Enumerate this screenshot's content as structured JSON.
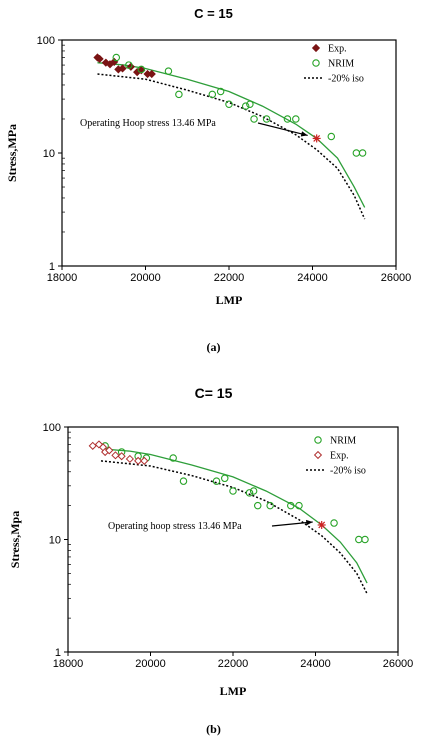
{
  "panels": [
    {
      "title": "C = 15",
      "label": "(a)",
      "chart_data": {
        "type": "scatter",
        "xlabel": "LMP",
        "ylabel": "Stress,MPa",
        "xlim": [
          18000,
          26000
        ],
        "ylim": [
          1,
          100
        ],
        "yscale": "log",
        "xticks": [
          "18000",
          "20000",
          "22000",
          "24000",
          "26000"
        ],
        "yticks": [
          "1",
          "10",
          "100"
        ],
        "legend_position": "top-right",
        "legend": [
          "Exp.",
          "NRIM",
          "-20% iso"
        ],
        "annotation": {
          "text": "Operating  Hoop stress 13.46 MPa",
          "x": 24100,
          "y": 13.46
        },
        "series": [
          {
            "name": "Exp.",
            "kind": "points",
            "marker": "filled-diamond",
            "color": "#7a1414",
            "x": [
              18850,
              18900,
              19050,
              19150,
              19250,
              19350,
              19450,
              19650,
              19800,
              19900,
              20050,
              20150
            ],
            "y": [
              70,
              68,
              63,
              61,
              64,
              55,
              56,
              58,
              52,
              54,
              50,
              50
            ]
          },
          {
            "name": "NRIM",
            "kind": "points",
            "marker": "open-circle",
            "color": "#27a327",
            "x": [
              19300,
              19600,
              19900,
              20550,
              20800,
              21600,
              21800,
              22000,
              22400,
              22500,
              22600,
              22900,
              23400,
              23600,
              24450,
              25050,
              25200
            ],
            "y": [
              70,
              60,
              55,
              53,
              33,
              33,
              35,
              27,
              26,
              27,
              20,
              20,
              20,
              20,
              14,
              10,
              10
            ]
          },
          {
            "name": "",
            "kind": "curve",
            "color": "#2e9e3a",
            "dash": "solid",
            "x": [
              18850,
              19500,
              20000,
              21000,
              22000,
              22800,
              23600,
              24100,
              24600,
              25000,
              25250
            ],
            "y": [
              63,
              60,
              56,
              45,
              35,
              26,
              18,
              13.46,
              9,
              5,
              3.3
            ]
          },
          {
            "name": "-20% iso",
            "kind": "curve",
            "color": "#000000",
            "dash": "dotted",
            "x": [
              18850,
              20000,
              21000,
              22000,
              22800,
              23600,
              24100,
              24600,
              25000,
              25250
            ],
            "y": [
              50,
              45,
              36,
              28,
              21,
              14.5,
              10.7,
              7.3,
              4.2,
              2.6
            ]
          },
          {
            "name": "",
            "kind": "points",
            "marker": "star",
            "color": "#cc2222",
            "x": [
              24100
            ],
            "y": [
              13.46
            ]
          }
        ]
      }
    },
    {
      "title": "C= 15",
      "label": "(b)",
      "chart_data": {
        "type": "scatter",
        "xlabel": "LMP",
        "ylabel": "Stress,Mpa",
        "xlim": [
          18000,
          26000
        ],
        "ylim": [
          1,
          100
        ],
        "yscale": "log",
        "xticks": [
          "18000",
          "20000",
          "22000",
          "24000",
          "26000"
        ],
        "yticks": [
          "1",
          "10",
          "100"
        ],
        "legend_position": "top-right",
        "legend": [
          "NRIM",
          "Exp.",
          "-20% iso"
        ],
        "annotation": {
          "text": "Operating hoop stress  13.46 MPa",
          "x": 24150,
          "y": 13.46
        },
        "series": [
          {
            "name": "NRIM",
            "kind": "points",
            "marker": "open-circle",
            "color": "#27a327",
            "x": [
              18900,
              19300,
              19700,
              19900,
              20550,
              20800,
              21600,
              21800,
              22000,
              22400,
              22500,
              22600,
              22900,
              23400,
              23600,
              24450,
              25050,
              25200
            ],
            "y": [
              68,
              60,
              55,
              53,
              53,
              33,
              33,
              35,
              27,
              26,
              27,
              20,
              20,
              20,
              20,
              14,
              10,
              10
            ]
          },
          {
            "name": "Exp.",
            "kind": "points",
            "marker": "open-diamond",
            "color": "#b03030",
            "x": [
              18600,
              18750,
              18850,
              18900,
              19000,
              19150,
              19300,
              19500,
              19700,
              19850
            ],
            "y": [
              68,
              70,
              66,
              60,
              62,
              56,
              55,
              52,
              50,
              50
            ]
          },
          {
            "name": "",
            "kind": "curve",
            "color": "#2e9e3a",
            "dash": "solid",
            "x": [
              18800,
              19500,
              20000,
              21000,
              22000,
              22800,
              23600,
              24150,
              24600,
              25000,
              25250
            ],
            "y": [
              64,
              61,
              57,
              46,
              36,
              27,
              19,
              13.46,
              9.5,
              6.2,
              4.1
            ]
          },
          {
            "name": "-20% iso",
            "kind": "curve",
            "color": "#000000",
            "dash": "dotted",
            "x": [
              18800,
              20000,
              21000,
              22000,
              22800,
              23600,
              24150,
              24600,
              25000,
              25250
            ],
            "y": [
              50,
              45,
              37,
              29,
              22,
              15,
              10.8,
              7.6,
              5,
              3.3
            ]
          },
          {
            "name": "",
            "kind": "points",
            "marker": "star",
            "color": "#cc2222",
            "x": [
              24150
            ],
            "y": [
              13.46
            ]
          }
        ]
      }
    }
  ]
}
